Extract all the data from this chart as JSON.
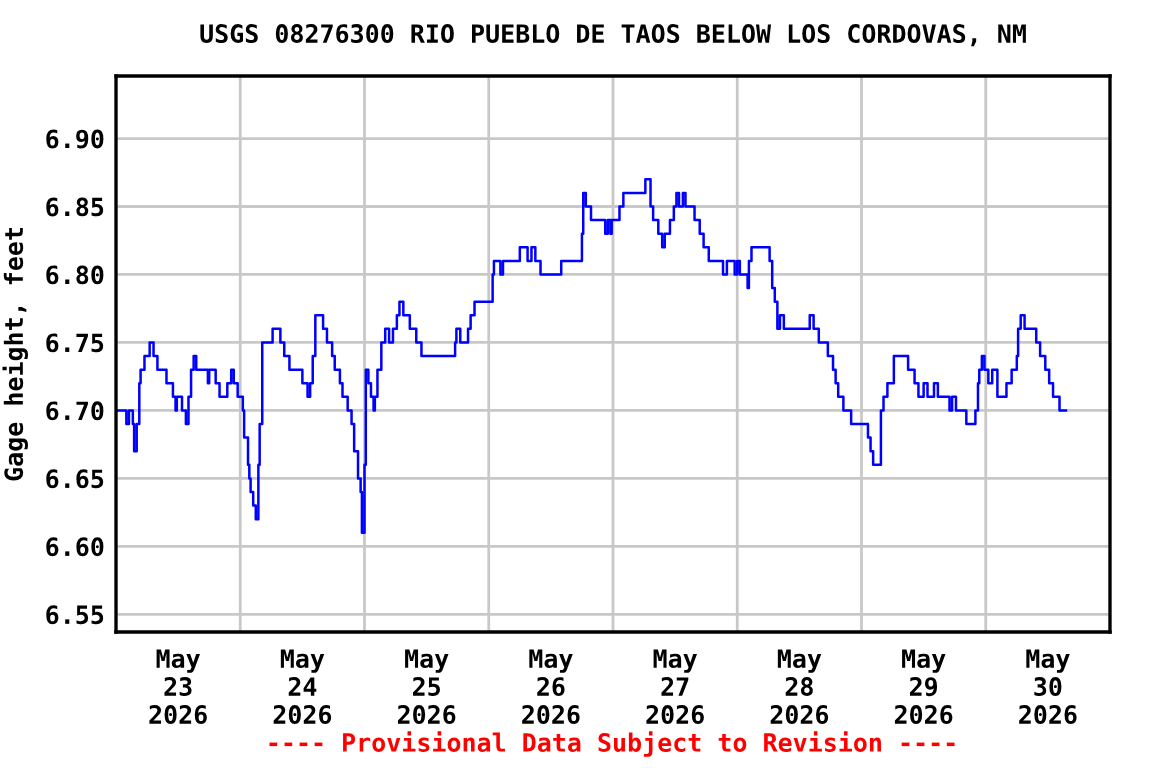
{
  "chart_data": {
    "type": "step",
    "title": "USGS 08276300 RIO PUEBLO DE TAOS BELOW LOS CORDOVAS, NM",
    "ylabel": "Gage height, feet",
    "annotations": [
      "---- Provisional Data Subject to Revision ----"
    ],
    "xlim": [
      "2026-05-23T00:00",
      "2026-05-31T00:00"
    ],
    "xticks": [
      {
        "value": "2026-05-23T00:00",
        "label": null
      },
      {
        "value": "2026-05-23T12:00",
        "label": "May\n23\n2026"
      },
      {
        "value": "2026-05-24T00:00",
        "label": null
      },
      {
        "value": "2026-05-24T12:00",
        "label": "May\n24\n2026"
      },
      {
        "value": "2026-05-25T00:00",
        "label": null
      },
      {
        "value": "2026-05-25T12:00",
        "label": "May\n25\n2026"
      },
      {
        "value": "2026-05-26T00:00",
        "label": null
      },
      {
        "value": "2026-05-26T12:00",
        "label": "May\n26\n2026"
      },
      {
        "value": "2026-05-27T00:00",
        "label": null
      },
      {
        "value": "2026-05-27T12:00",
        "label": "May\n27\n2026"
      },
      {
        "value": "2026-05-28T00:00",
        "label": null
      },
      {
        "value": "2026-05-28T12:00",
        "label": "May\n28\n2026"
      },
      {
        "value": "2026-05-29T00:00",
        "label": null
      },
      {
        "value": "2026-05-29T12:00",
        "label": "May\n29\n2026"
      },
      {
        "value": "2026-05-30T00:00",
        "label": null
      },
      {
        "value": "2026-05-30T12:00",
        "label": "May\n30\n2026"
      },
      {
        "value": "2026-05-31T00:00",
        "label": null
      }
    ],
    "ylim": [
      6.537,
      6.946
    ],
    "yticks": [
      6.55,
      {
        "value": 6.6,
        "label": "6.60"
      },
      6.65,
      {
        "value": 6.7,
        "label": "6.70"
      },
      6.75,
      {
        "value": 6.8,
        "label": "6.80"
      },
      6.85,
      {
        "value": 6.9,
        "label": "6.90"
      }
    ],
    "grid": true,
    "series": [
      {
        "color": "#0000ff",
        "x": [
          "2026-05-23T00:00",
          "2026-05-23T01:30",
          "2026-05-23T02:00",
          "2026-05-23T02:30",
          "2026-05-23T03:15",
          "2026-05-23T03:30",
          "2026-05-23T04:00",
          "2026-05-23T04:30",
          "2026-05-23T04:45",
          "2026-05-23T05:30",
          "2026-05-23T06:30",
          "2026-05-23T07:15",
          "2026-05-23T08:00",
          "2026-05-23T09:45",
          "2026-05-23T11:00",
          "2026-05-23T11:30",
          "2026-05-23T11:45",
          "2026-05-23T12:45",
          "2026-05-23T13:30",
          "2026-05-23T14:00",
          "2026-05-23T14:30",
          "2026-05-23T15:00",
          "2026-05-23T15:30",
          "2026-05-23T17:30",
          "2026-05-23T17:45",
          "2026-05-23T18:00",
          "2026-05-23T18:45",
          "2026-05-23T19:15",
          "2026-05-23T20:00",
          "2026-05-23T21:00",
          "2026-05-23T21:30",
          "2026-05-23T22:15",
          "2026-05-23T22:45",
          "2026-05-23T23:30",
          "2026-05-24T00:30",
          "2026-05-24T00:45",
          "2026-05-24T01:30",
          "2026-05-24T01:45",
          "2026-05-24T02:00",
          "2026-05-24T02:30",
          "2026-05-24T03:00",
          "2026-05-24T03:30",
          "2026-05-24T03:45",
          "2026-05-24T04:15",
          "2026-05-24T04:45",
          "2026-05-24T06:15",
          "2026-05-24T07:15",
          "2026-05-24T07:45",
          "2026-05-24T08:30",
          "2026-05-24T09:30",
          "2026-05-24T11:30",
          "2026-05-24T12:00",
          "2026-05-24T13:00",
          "2026-05-24T13:30",
          "2026-05-24T14:00",
          "2026-05-24T14:30",
          "2026-05-24T15:30",
          "2026-05-24T16:00",
          "2026-05-24T16:45",
          "2026-05-24T17:45",
          "2026-05-24T18:15",
          "2026-05-24T19:15",
          "2026-05-24T19:45",
          "2026-05-24T20:45",
          "2026-05-24T21:30",
          "2026-05-24T22:00",
          "2026-05-24T22:45",
          "2026-05-24T23:15",
          "2026-05-24T23:30",
          "2026-05-25T00:00",
          "2026-05-25T00:15",
          "2026-05-25T00:45",
          "2026-05-25T01:15",
          "2026-05-25T01:45",
          "2026-05-25T02:00",
          "2026-05-25T02:30",
          "2026-05-25T03:15",
          "2026-05-25T04:00",
          "2026-05-25T04:45",
          "2026-05-25T05:30",
          "2026-05-25T06:15",
          "2026-05-25T06:45",
          "2026-05-25T07:30",
          "2026-05-25T08:45",
          "2026-05-25T10:00",
          "2026-05-25T11:00",
          "2026-05-25T17:15",
          "2026-05-25T17:30",
          "2026-05-25T17:45",
          "2026-05-25T18:30",
          "2026-05-25T20:00",
          "2026-05-25T20:30",
          "2026-05-25T21:15",
          "2026-05-26T00:15",
          "2026-05-26T00:45",
          "2026-05-26T01:00",
          "2026-05-26T02:15",
          "2026-05-26T02:45",
          "2026-05-26T05:30",
          "2026-05-26T06:00",
          "2026-05-26T07:15",
          "2026-05-26T07:30",
          "2026-05-26T08:15",
          "2026-05-26T09:00",
          "2026-05-26T10:00",
          "2026-05-26T13:30",
          "2026-05-26T14:00",
          "2026-05-26T17:45",
          "2026-05-26T18:00",
          "2026-05-26T18:15",
          "2026-05-26T18:45",
          "2026-05-26T19:45",
          "2026-05-26T22:15",
          "2026-05-26T22:30",
          "2026-05-26T23:00",
          "2026-05-26T23:30",
          "2026-05-26T23:45",
          "2026-05-27T00:45",
          "2026-05-27T01:15",
          "2026-05-27T02:00",
          "2026-05-27T06:00",
          "2026-05-27T06:15",
          "2026-05-27T07:00",
          "2026-05-27T07:15",
          "2026-05-27T07:45",
          "2026-05-27T08:45",
          "2026-05-27T09:30",
          "2026-05-27T10:00",
          "2026-05-27T11:00",
          "2026-05-27T11:45",
          "2026-05-27T12:15",
          "2026-05-27T12:45",
          "2026-05-27T13:30",
          "2026-05-27T14:00",
          "2026-05-27T15:15",
          "2026-05-27T15:45",
          "2026-05-27T16:45",
          "2026-05-27T17:30",
          "2026-05-27T18:30",
          "2026-05-27T21:15",
          "2026-05-27T22:00",
          "2026-05-27T22:45",
          "2026-05-27T23:30",
          "2026-05-28T00:00",
          "2026-05-28T00:30",
          "2026-05-28T02:00",
          "2026-05-28T02:15",
          "2026-05-28T02:45",
          "2026-05-28T05:45",
          "2026-05-28T06:15",
          "2026-05-28T06:45",
          "2026-05-28T07:15",
          "2026-05-28T07:45",
          "2026-05-28T08:15",
          "2026-05-28T09:00",
          "2026-05-28T13:30",
          "2026-05-28T14:00",
          "2026-05-28T14:45",
          "2026-05-28T15:45",
          "2026-05-28T17:30",
          "2026-05-28T18:30",
          "2026-05-28T19:00",
          "2026-05-28T19:30",
          "2026-05-28T20:30",
          "2026-05-28T22:00",
          "2026-05-29T00:45",
          "2026-05-29T01:15",
          "2026-05-29T01:45",
          "2026-05-29T02:15",
          "2026-05-29T03:00",
          "2026-05-29T03:45",
          "2026-05-29T04:15",
          "2026-05-29T05:00",
          "2026-05-29T06:15",
          "2026-05-29T08:30",
          "2026-05-29T09:00",
          "2026-05-29T10:15",
          "2026-05-29T11:00",
          "2026-05-29T12:00",
          "2026-05-29T12:45",
          "2026-05-29T14:00",
          "2026-05-29T14:45",
          "2026-05-29T16:30",
          "2026-05-29T17:00",
          "2026-05-29T17:30",
          "2026-05-29T18:15",
          "2026-05-29T20:00",
          "2026-05-29T20:15",
          "2026-05-29T21:30",
          "2026-05-29T22:00",
          "2026-05-29T22:30",
          "2026-05-29T22:45",
          "2026-05-29T23:15",
          "2026-05-29T23:45",
          "2026-05-30T00:30",
          "2026-05-30T01:15",
          "2026-05-30T02:15",
          "2026-05-30T03:45",
          "2026-05-30T04:00",
          "2026-05-30T05:00",
          "2026-05-30T06:00",
          "2026-05-30T06:15",
          "2026-05-30T06:45",
          "2026-05-30T07:30",
          "2026-05-30T09:15",
          "2026-05-30T09:45",
          "2026-05-30T10:30",
          "2026-05-30T11:30",
          "2026-05-30T12:15",
          "2026-05-30T13:00",
          "2026-05-30T14:15",
          "2026-05-30T15:30"
        ],
        "values": [
          6.7,
          6.7,
          6.69,
          6.7,
          6.69,
          6.67,
          6.69,
          6.72,
          6.73,
          6.74,
          6.75,
          6.74,
          6.73,
          6.72,
          6.71,
          6.7,
          6.71,
          6.7,
          6.69,
          6.71,
          6.73,
          6.74,
          6.73,
          6.73,
          6.72,
          6.73,
          6.73,
          6.72,
          6.71,
          6.71,
          6.72,
          6.73,
          6.72,
          6.71,
          6.7,
          6.68,
          6.66,
          6.65,
          6.64,
          6.63,
          6.62,
          6.66,
          6.69,
          6.75,
          6.75,
          6.76,
          6.76,
          6.75,
          6.74,
          6.73,
          6.73,
          6.72,
          6.71,
          6.72,
          6.74,
          6.77,
          6.77,
          6.76,
          6.75,
          6.74,
          6.73,
          6.72,
          6.71,
          6.7,
          6.69,
          6.67,
          6.65,
          6.64,
          6.61,
          6.66,
          6.73,
          6.72,
          6.71,
          6.7,
          6.71,
          6.73,
          6.75,
          6.76,
          6.75,
          6.76,
          6.77,
          6.78,
          6.77,
          6.76,
          6.75,
          6.74,
          6.74,
          6.75,
          6.76,
          6.75,
          6.76,
          6.77,
          6.78,
          6.78,
          6.8,
          6.81,
          6.8,
          6.81,
          6.81,
          6.82,
          6.82,
          6.81,
          6.82,
          6.81,
          6.8,
          6.8,
          6.81,
          6.81,
          6.83,
          6.86,
          6.85,
          6.84,
          6.84,
          6.83,
          6.84,
          6.83,
          6.84,
          6.84,
          6.85,
          6.86,
          6.86,
          6.87,
          6.87,
          6.85,
          6.84,
          6.83,
          6.82,
          6.83,
          6.84,
          6.85,
          6.86,
          6.85,
          6.86,
          6.85,
          6.85,
          6.84,
          6.83,
          6.82,
          6.81,
          6.8,
          6.81,
          6.81,
          6.8,
          6.81,
          6.8,
          6.79,
          6.81,
          6.82,
          6.82,
          6.81,
          6.79,
          6.78,
          6.76,
          6.77,
          6.76,
          6.76,
          6.77,
          6.76,
          6.75,
          6.74,
          6.73,
          6.72,
          6.71,
          6.7,
          6.69,
          6.69,
          6.68,
          6.67,
          6.66,
          6.66,
          6.7,
          6.71,
          6.72,
          6.74,
          6.74,
          6.73,
          6.72,
          6.71,
          6.72,
          6.71,
          6.72,
          6.71,
          6.71,
          6.7,
          6.71,
          6.7,
          6.7,
          6.69,
          6.69,
          6.7,
          6.72,
          6.73,
          6.74,
          6.73,
          6.72,
          6.73,
          6.71,
          6.71,
          6.72,
          6.73,
          6.74,
          6.76,
          6.77,
          6.76,
          6.76,
          6.75,
          6.74,
          6.73,
          6.72,
          6.71,
          6.7,
          6.7
        ]
      }
    ]
  }
}
